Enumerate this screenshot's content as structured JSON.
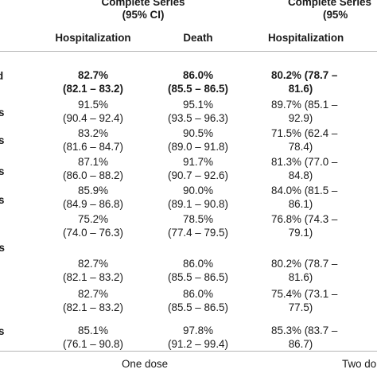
{
  "header": {
    "group_1": {
      "line1": "Complete Series",
      "line2": "(95% CI)"
    },
    "group_2": {
      "line1": "Complete Series",
      "line2": "(95%"
    },
    "col_hosp_1": "Hospitalization",
    "col_death_1": "Death",
    "col_hosp_2": "Hospitalization"
  },
  "row_label_fragments": [
    "d",
    "s",
    "s",
    "s",
    "s",
    "es",
    "s"
  ],
  "rows": [
    {
      "bold": true,
      "hosp": [
        "82.7%",
        "(82.1 – 83.2)"
      ],
      "death": [
        "86.0%",
        "(85.5 – 86.5)"
      ],
      "hosp2": [
        "80.2% (78.7 –",
        "81.6)"
      ]
    },
    {
      "bold": false,
      "hosp": [
        "91.5%",
        "(90.4 – 92.4)"
      ],
      "death": [
        "95.1%",
        "(93.5 – 96.3)"
      ],
      "hosp2": [
        "89.7% (85.1 –",
        "92.9)"
      ]
    },
    {
      "bold": false,
      "hosp": [
        "83.2%",
        "(81.6 – 84.7)"
      ],
      "death": [
        "90.5%",
        "(89.0 – 91.8)"
      ],
      "hosp2": [
        "71.5% (62.4 –",
        "78.4)"
      ]
    },
    {
      "bold": false,
      "hosp": [
        "87.1%",
        "(86.0 – 88.2)"
      ],
      "death": [
        "91.7%",
        "(90.7 – 92.6)"
      ],
      "hosp2": [
        "81.3% (77.0 –",
        "84.8)"
      ]
    },
    {
      "bold": false,
      "hosp": [
        "85.9%",
        "(84.9 – 86.8)"
      ],
      "death": [
        "90.0%",
        "(89.1 – 90.8)"
      ],
      "hosp2": [
        "84.0% (81.5 –",
        "86.1)"
      ]
    },
    {
      "bold": false,
      "hosp": [
        "75.2%",
        "(74.0 – 76.3)"
      ],
      "death": [
        "78.5%",
        "(77.4 – 79.5)"
      ],
      "hosp2": [
        "76.8% (74.3 –",
        "79.1)"
      ]
    },
    {
      "bold": false,
      "hosp": [
        "82.7%",
        "(82.1 – 83.2)"
      ],
      "death": [
        "86.0%",
        "(85.5 – 86.5)"
      ],
      "hosp2": [
        "80.2% (78.7 –",
        "81.6)"
      ]
    },
    {
      "bold": false,
      "hosp": [
        "82.7%",
        "(82.1 – 83.2)"
      ],
      "death": [
        "86.0%",
        "(85.5 – 86.5)"
      ],
      "hosp2": [
        "75.4% (73.1 –",
        "77.5)"
      ]
    },
    {
      "bold": false,
      "hosp": [
        "85.1%",
        "(76.1 – 90.8)"
      ],
      "death": [
        "97.8%",
        "(91.2 – 99.4)"
      ],
      "hosp2": [
        "85.3% (83.7 –",
        "86.7)"
      ]
    }
  ],
  "footer": {
    "dose_1": "One dose",
    "dose_2": "Two do"
  }
}
